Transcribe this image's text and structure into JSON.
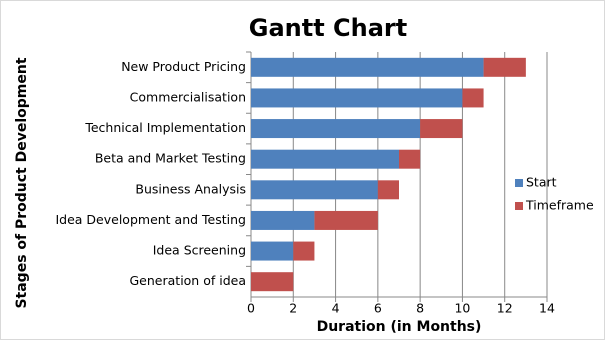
{
  "chart_data": {
    "type": "bar",
    "orientation": "horizontal",
    "stacked": true,
    "title": "Gantt Chart",
    "x_label": "Duration (in Months)",
    "y_label": "Stages of Product Development",
    "categories": [
      "New Product Pricing",
      "Commercialisation",
      "Technical Implementation",
      "Beta and Market Testing",
      "Business Analysis",
      "Idea Development and Testing",
      "Idea Screening",
      "Generation of idea"
    ],
    "series": [
      {
        "name": "Start",
        "color": "#4f81bd",
        "values": [
          11,
          10,
          8,
          7,
          6,
          3,
          2,
          0
        ]
      },
      {
        "name": "Timeframe",
        "color": "#c0504d",
        "values": [
          2,
          1,
          2,
          1,
          1,
          3,
          1,
          2
        ]
      }
    ],
    "xlim": [
      0,
      14
    ],
    "xticks": [
      0,
      2,
      4,
      6,
      8,
      10,
      12,
      14
    ],
    "grid": true,
    "legend": "right"
  }
}
